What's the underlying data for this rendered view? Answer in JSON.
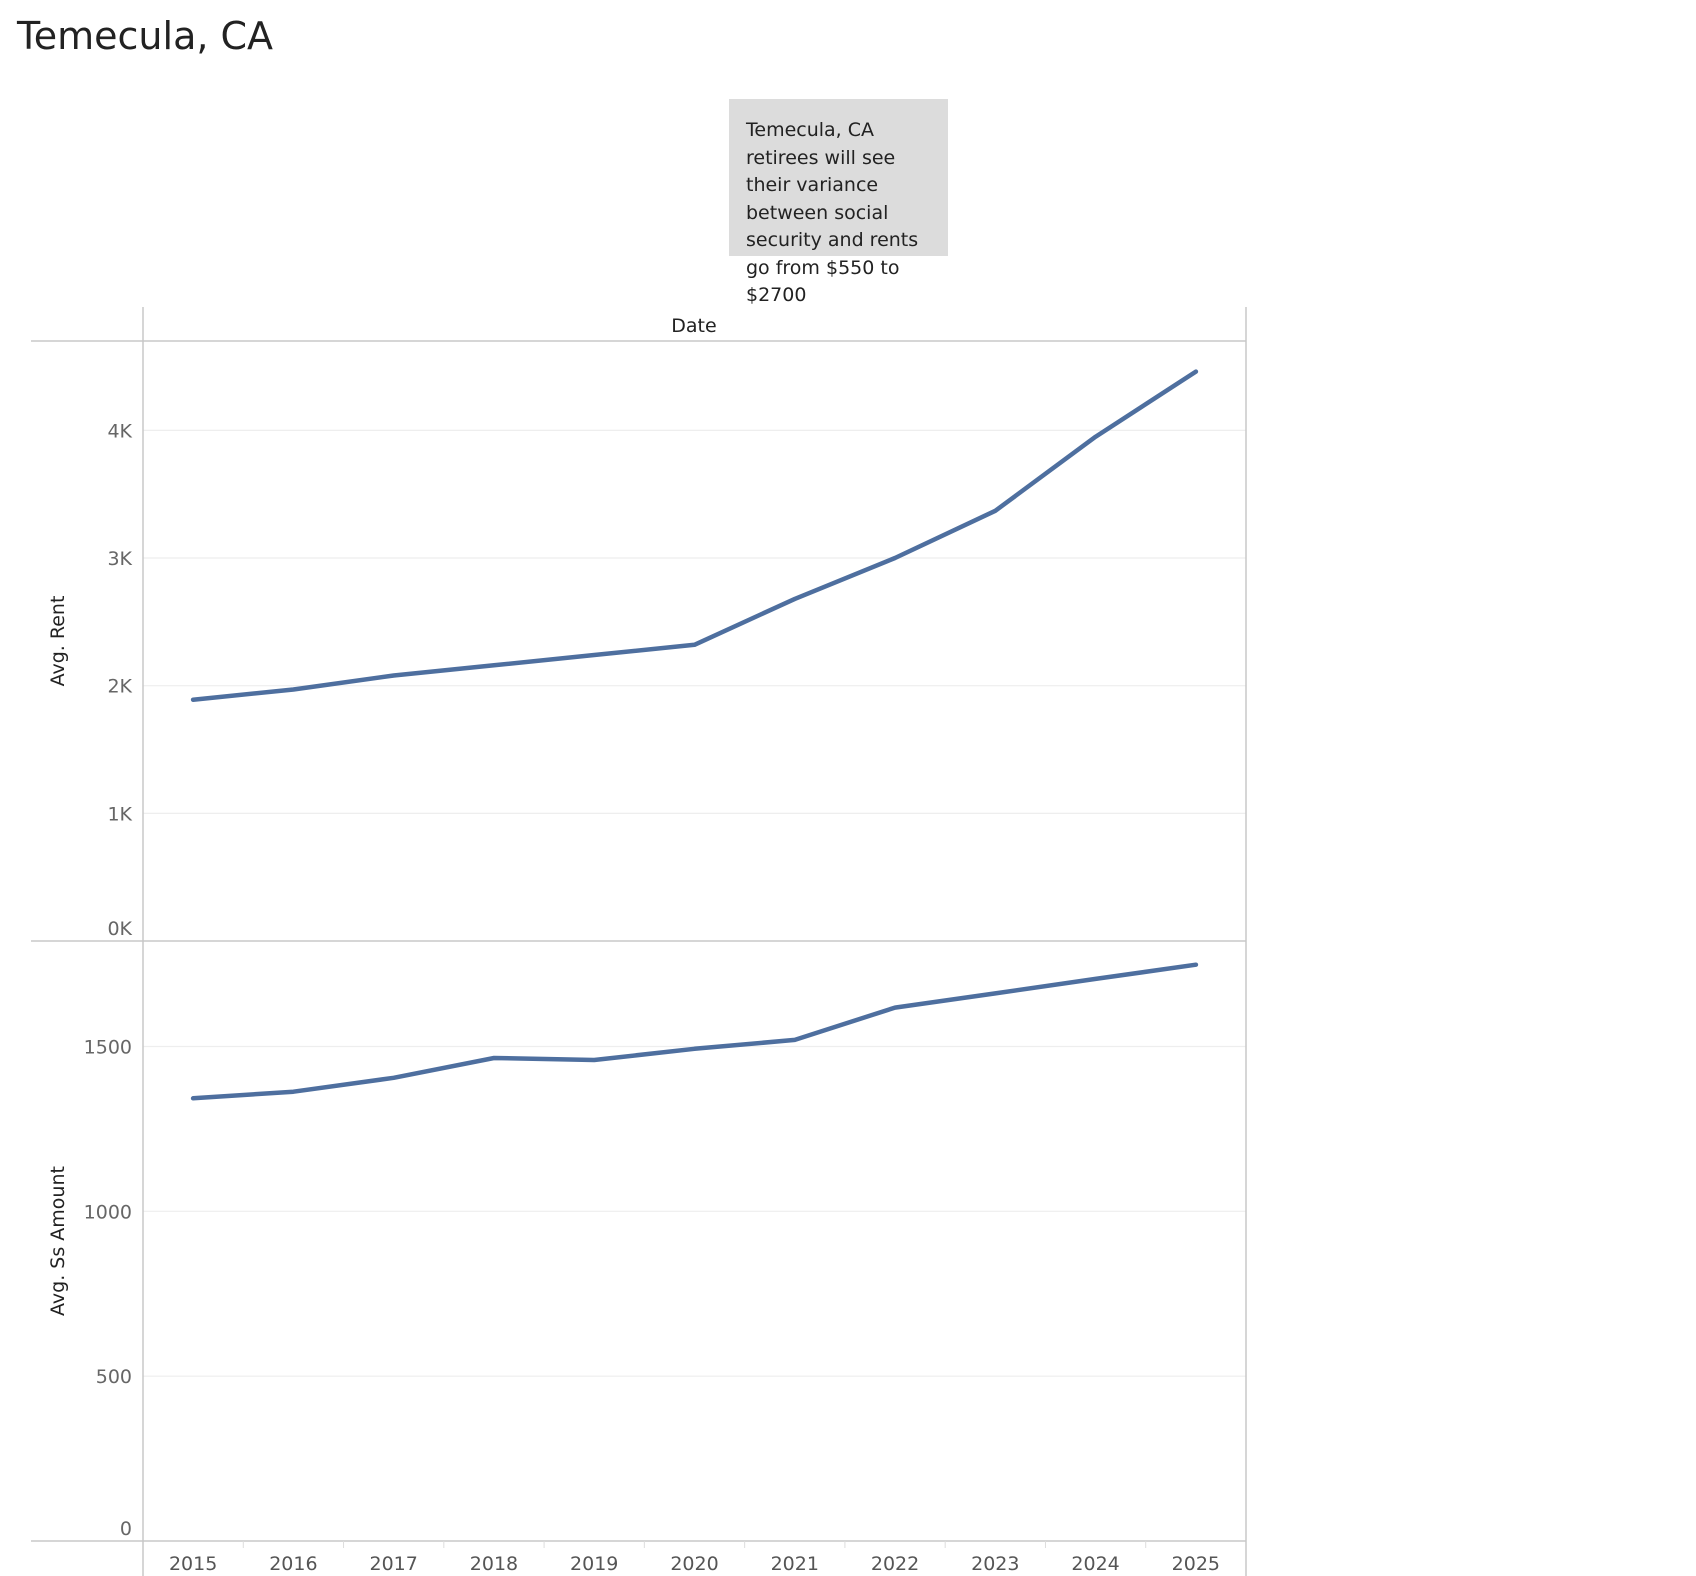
{
  "page": {
    "title": "Temecula, CA",
    "annotation": "Temecula, CA retirees will see their variance between social security and rents go from $550 to $2700"
  },
  "colors": {
    "line": "#4e6f9f",
    "grid": "#eeeeee",
    "axis": "#c8c8c8"
  },
  "chart_data": {
    "type": "line",
    "column_header": "Date",
    "x": [
      "2015",
      "2016",
      "2017",
      "2018",
      "2019",
      "2020",
      "2021",
      "2022",
      "2023",
      "2024",
      "2025"
    ],
    "panels": [
      {
        "ylabel": "Avg. Rent",
        "ylim": [
          0,
          4700
        ],
        "yticks": [
          0,
          1000,
          2000,
          3000,
          4000
        ],
        "yticklabels": [
          "0K",
          "1K",
          "2K",
          "3K",
          "4K"
        ],
        "series": [
          {
            "values": [
              1890,
              1970,
              2080,
              2160,
              2240,
              2320,
              2680,
              3000,
              3370,
              3950,
              4460
            ]
          }
        ]
      },
      {
        "ylabel": "Avg. Ss Amount",
        "ylim": [
          0,
          1820
        ],
        "yticks": [
          0,
          500,
          1000,
          1500
        ],
        "yticklabels": [
          "0",
          "500",
          "1000",
          "1500"
        ],
        "series": [
          {
            "values": [
              1343,
              1363,
              1405,
              1465,
              1459,
              1493,
              1520,
              1618,
              1661,
              1705,
              1748
            ]
          }
        ]
      }
    ],
    "grid": true,
    "legend": "none"
  }
}
